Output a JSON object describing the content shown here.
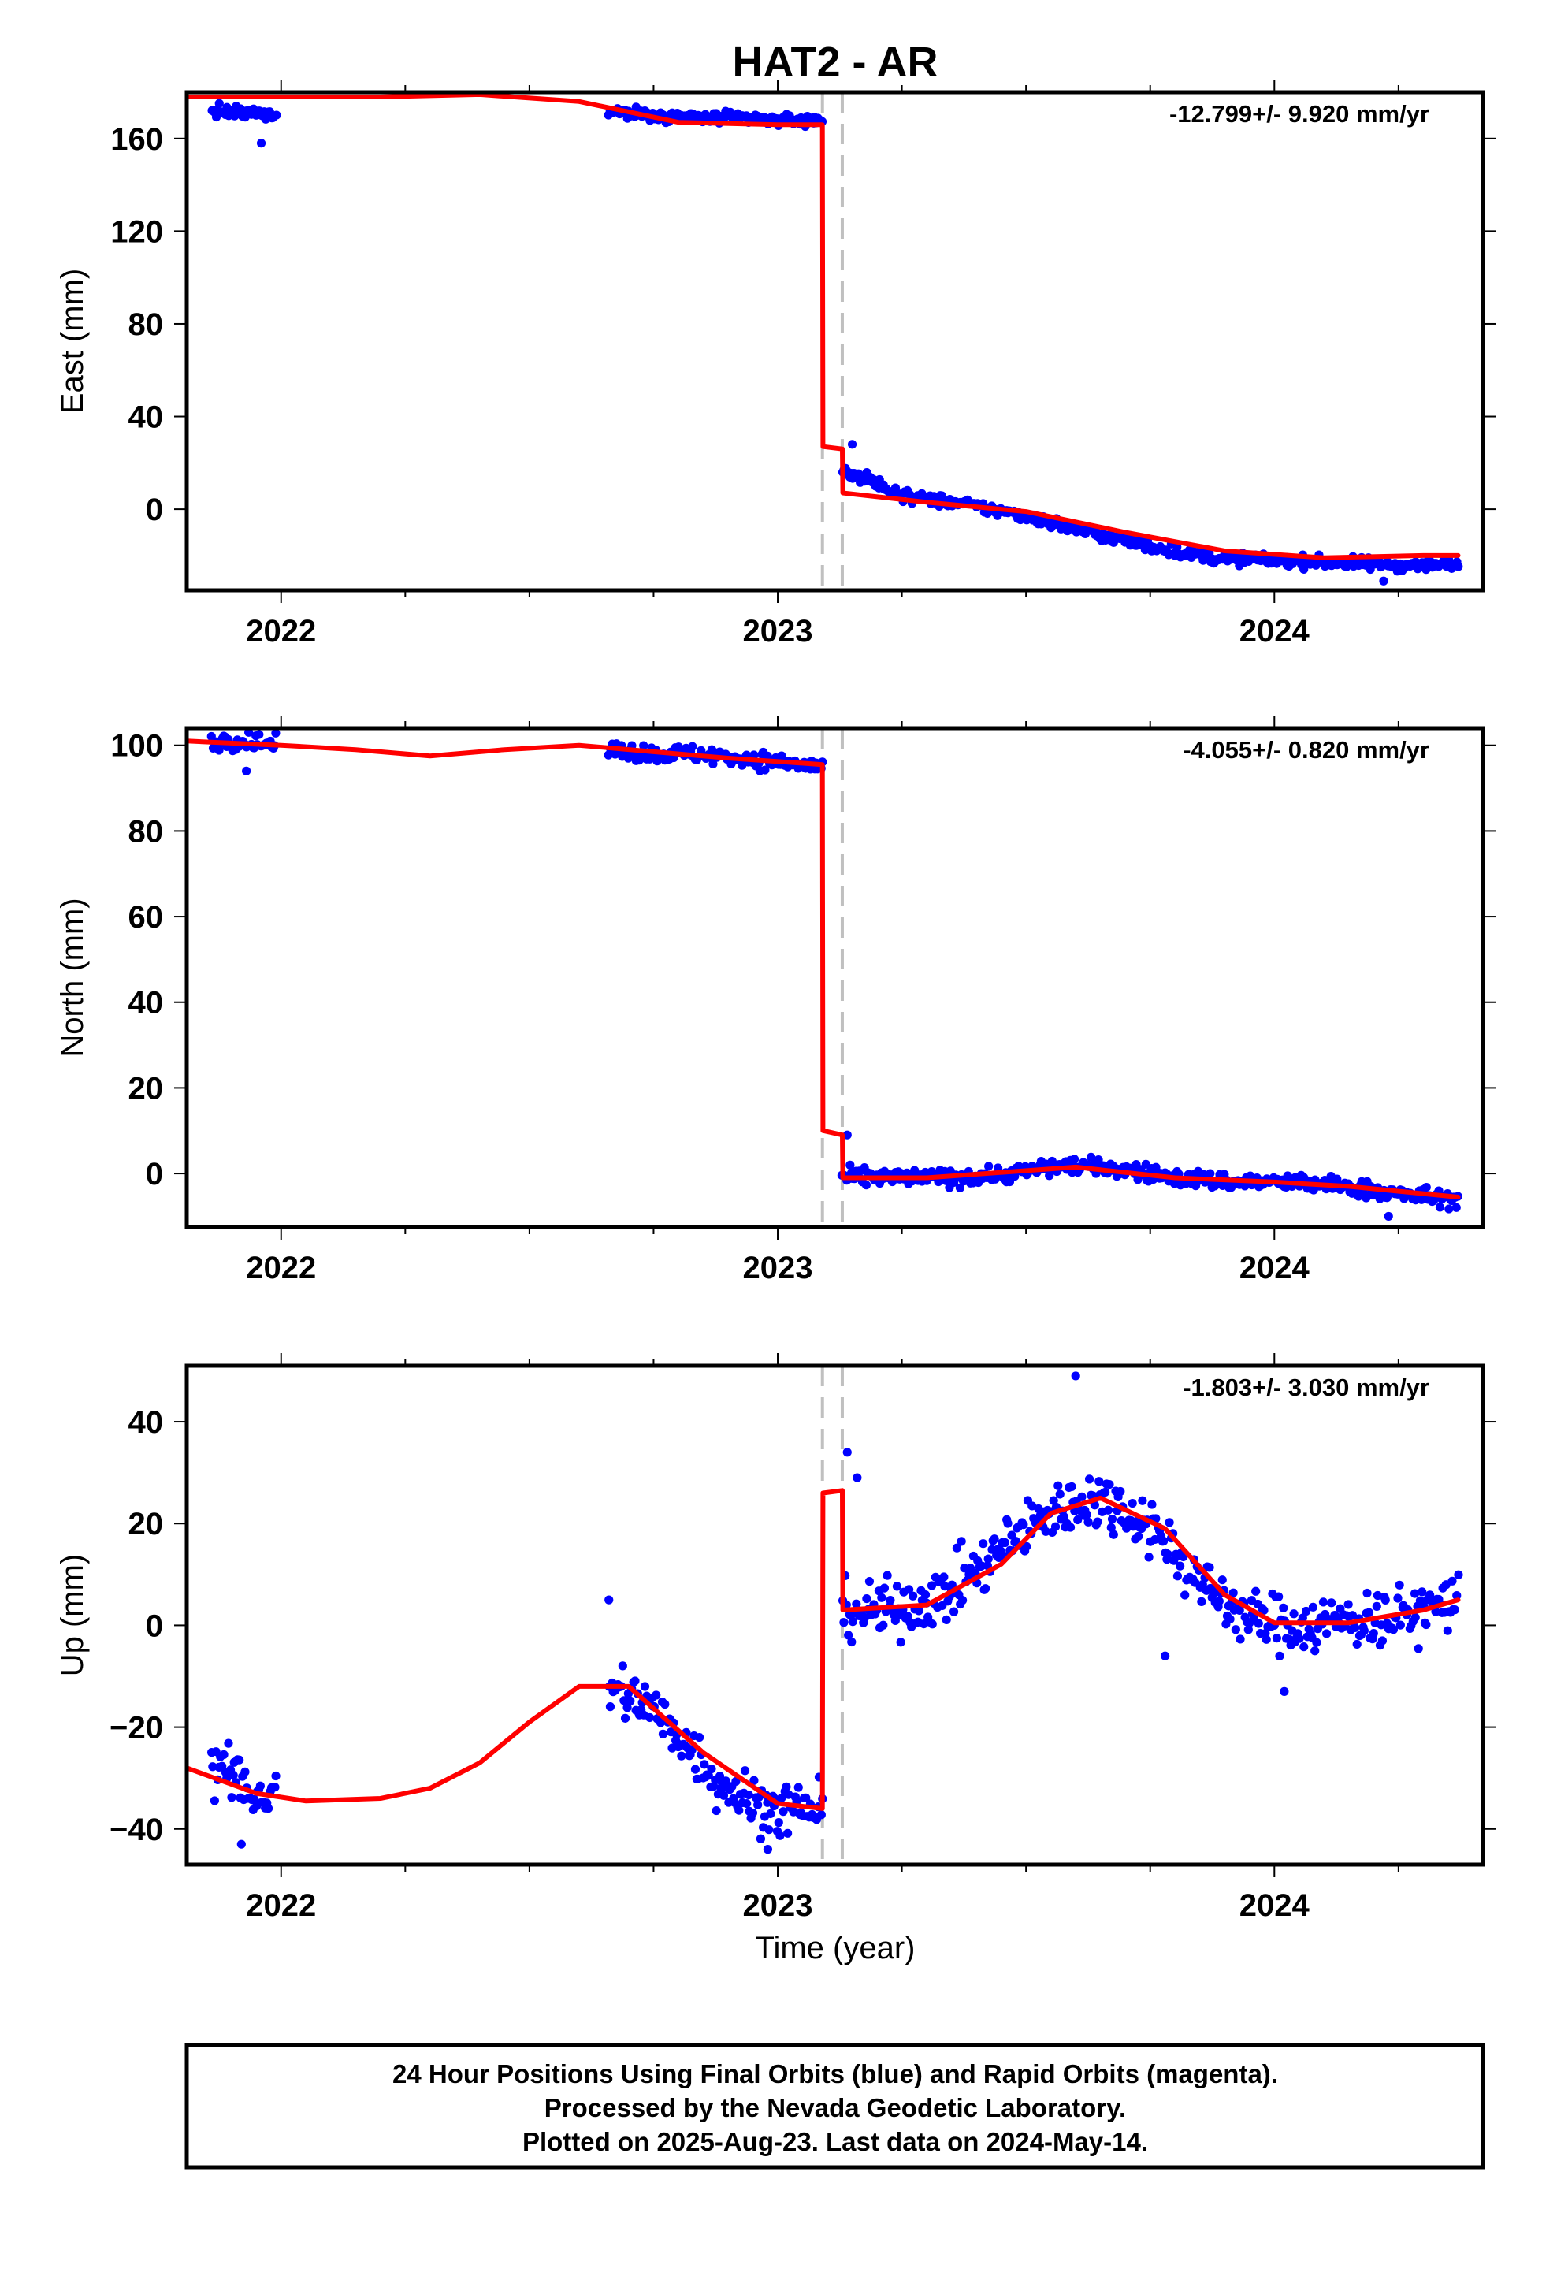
{
  "title": "HAT2 - AR",
  "xlabel": "Time (year)",
  "caption": [
    "24 Hour Positions Using Final Orbits (blue) and Rapid Orbits (magenta).",
    "Processed by the Nevada Geodetic Laboratory.",
    "Plotted on 2025-Aug-23. Last data on 2024-May-14."
  ],
  "colors": {
    "data": "#0000ff",
    "model": "#ff0000",
    "step_line": "#c0c0c0",
    "frame": "#000000"
  },
  "chart_data": [
    {
      "type": "scatter",
      "ylabel": "East (mm)",
      "rate_text": "-12.799+/- 9.920 mm/yr",
      "xlim": [
        2021.81,
        2024.42
      ],
      "ylim": [
        -35,
        180
      ],
      "x_ticks": [
        2022,
        2023,
        2024
      ],
      "x_tick_labels": [
        "2022",
        "2023",
        "2024"
      ],
      "y_ticks": [
        0,
        40,
        80,
        120,
        160
      ],
      "y_tick_labels": [
        "0",
        "40",
        "80",
        "120",
        "160"
      ],
      "step_epochs": [
        2023.09,
        2023.13
      ],
      "data_segments": [
        {
          "start": 2021.86,
          "end": 2021.99,
          "values": [
            172,
            171,
            170
          ]
        },
        {
          "start": 2022.66,
          "end": 2023.09,
          "values": [
            172,
            170,
            169,
            169,
            168,
            168
          ]
        },
        {
          "start": 2023.13,
          "end": 2024.37,
          "values": [
            17,
            6,
            2,
            -3,
            -10,
            -16,
            -21,
            -22,
            -23,
            -24,
            -24
          ]
        }
      ],
      "outliers": [
        [
          2021.96,
          158
        ],
        [
          2023.15,
          28
        ],
        [
          2024.22,
          -31
        ]
      ],
      "model_x": [
        2021.81,
        2022.0,
        2022.2,
        2022.4,
        2022.6,
        2022.8,
        2023.0,
        2023.09,
        2023.091,
        2023.13,
        2023.131,
        2023.3,
        2023.5,
        2023.7,
        2023.9,
        2024.1,
        2024.3,
        2024.37
      ],
      "model_y": [
        178,
        178,
        178,
        179,
        176,
        167,
        166,
        166,
        27,
        26,
        7,
        3,
        -1,
        -10,
        -18,
        -21,
        -20,
        -20
      ]
    },
    {
      "type": "scatter",
      "ylabel": "North (mm)",
      "rate_text": "-4.055+/- 0.820 mm/yr",
      "xlim": [
        2021.81,
        2024.42
      ],
      "ylim": [
        -12.5,
        104
      ],
      "x_ticks": [
        2022,
        2023,
        2024
      ],
      "x_tick_labels": [
        "2022",
        "2023",
        "2024"
      ],
      "y_ticks": [
        0,
        20,
        40,
        60,
        80,
        100
      ],
      "y_tick_labels": [
        "0",
        "20",
        "40",
        "60",
        "80",
        "100"
      ],
      "step_epochs": [
        2023.09,
        2023.13
      ],
      "data_segments": [
        {
          "start": 2021.86,
          "end": 2021.99,
          "values": [
            101,
            101,
            100
          ]
        },
        {
          "start": 2022.66,
          "end": 2023.09,
          "values": [
            99,
            98,
            98,
            97,
            96,
            95
          ]
        },
        {
          "start": 2023.13,
          "end": 2024.37,
          "values": [
            -1,
            -1,
            -1,
            0,
            2,
            1,
            -1,
            -2,
            -2,
            -3,
            -5,
            -6
          ]
        }
      ],
      "outliers": [
        [
          2021.93,
          94
        ],
        [
          2023.14,
          9
        ],
        [
          2024.23,
          -10
        ]
      ],
      "model_x": [
        2021.81,
        2022.0,
        2022.15,
        2022.3,
        2022.45,
        2022.6,
        2022.75,
        2022.9,
        2023.09,
        2023.091,
        2023.13,
        2023.131,
        2023.3,
        2023.6,
        2023.8,
        2024.0,
        2024.15,
        2024.37
      ],
      "model_y": [
        101,
        100,
        99,
        97.5,
        99,
        100,
        98.5,
        97,
        95.5,
        10,
        9,
        -1,
        -1,
        1.5,
        -1,
        -2,
        -3,
        -5.5
      ]
    },
    {
      "type": "scatter",
      "ylabel": "Up (mm)",
      "rate_text": "-1.803+/- 3.030 mm/yr",
      "xlim": [
        2021.81,
        2024.42
      ],
      "ylim": [
        -47,
        51
      ],
      "x_ticks": [
        2022,
        2023,
        2024
      ],
      "x_tick_labels": [
        "2022",
        "2023",
        "2024"
      ],
      "y_ticks": [
        -40,
        -20,
        0,
        20,
        40
      ],
      "y_tick_labels": [
        "−40",
        "−20",
        "0",
        "20",
        "40"
      ],
      "step_epochs": [
        2023.09,
        2023.13
      ],
      "data_segments": [
        {
          "start": 2021.86,
          "end": 2021.99,
          "values": [
            -28,
            -30,
            -33,
            -34
          ]
        },
        {
          "start": 2022.66,
          "end": 2023.09,
          "values": [
            -12,
            -15,
            -22,
            -30,
            -35,
            -36,
            -36
          ]
        },
        {
          "start": 2023.13,
          "end": 2024.37,
          "values": [
            3,
            3,
            6,
            14,
            22,
            25,
            20,
            8,
            1,
            0,
            1,
            2,
            5
          ]
        }
      ],
      "outliers": [
        [
          2023.6,
          49
        ],
        [
          2022.66,
          5
        ],
        [
          2023.14,
          34
        ],
        [
          2023.16,
          29
        ],
        [
          2023.78,
          -6
        ],
        [
          2024.02,
          -13
        ],
        [
          2021.92,
          -43
        ],
        [
          2022.98,
          -44
        ]
      ],
      "model_x": [
        2021.81,
        2021.95,
        2022.05,
        2022.2,
        2022.3,
        2022.4,
        2022.5,
        2022.6,
        2022.7,
        2022.85,
        2023.0,
        2023.09,
        2023.091,
        2023.13,
        2023.131,
        2023.3,
        2023.45,
        2023.55,
        2023.65,
        2023.78,
        2023.9,
        2024.0,
        2024.15,
        2024.3,
        2024.37
      ],
      "model_y": [
        -28,
        -33,
        -34.5,
        -34,
        -32,
        -27,
        -19,
        -12,
        -12,
        -25,
        -35,
        -36,
        26,
        26.5,
        3,
        4,
        12,
        22,
        25,
        19,
        6,
        0.5,
        0.5,
        3,
        5
      ]
    }
  ]
}
